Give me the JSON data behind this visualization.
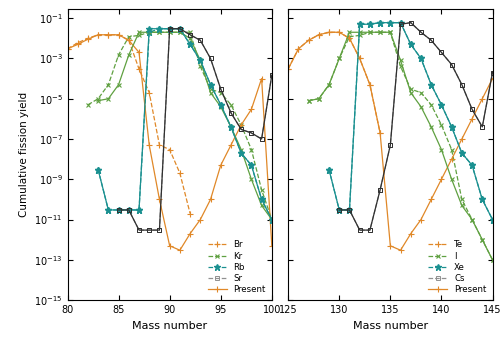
{
  "ylabel": "Cumulative fission yield",
  "xlabel": "Mass number",
  "ylim": [
    1e-15,
    0.3
  ],
  "colors": {
    "orange": "#E08828",
    "green": "#5FA040",
    "teal": "#1A9090",
    "gray": "#909090",
    "black": "#303030"
  },
  "Br_J_m": [
    80,
    81,
    82,
    83,
    84,
    85,
    86,
    87,
    88,
    89,
    90,
    91,
    92
  ],
  "Br_J_y": [
    0.003,
    0.006,
    0.01,
    0.015,
    0.015,
    0.015,
    0.008,
    0.0003,
    2e-05,
    5e-08,
    3e-08,
    2e-09,
    2e-11
  ],
  "Kr_J_m": [
    82,
    83,
    84,
    85,
    86,
    87,
    88,
    89,
    90,
    91,
    92,
    93,
    94,
    95,
    96,
    97,
    98,
    99,
    100
  ],
  "Kr_J_y": [
    5e-06,
    1e-05,
    5e-05,
    0.0015,
    0.012,
    0.014,
    0.02,
    0.02,
    0.02,
    0.02,
    0.02,
    0.0004,
    3e-05,
    2e-05,
    5e-06,
    5e-07,
    3e-08,
    3e-10,
    1e-11
  ],
  "Rb_J_m": [
    83,
    84,
    85,
    86,
    87,
    88,
    89,
    90,
    91,
    92,
    93,
    94,
    95,
    96,
    97,
    98,
    99,
    100
  ],
  "Rb_J_y": [
    3e-09,
    3e-11,
    3e-11,
    3e-11,
    3e-11,
    0.02,
    0.03,
    0.03,
    0.03,
    0.005,
    0.0008,
    5e-05,
    5e-06,
    4e-07,
    2e-08,
    5e-09,
    1e-10,
    1e-11
  ],
  "Sr_J_m": [
    85,
    86,
    87,
    88,
    89,
    90,
    91,
    92,
    93,
    94,
    95,
    96,
    97,
    98,
    99,
    100
  ],
  "Sr_J_y": [
    3e-11,
    3e-11,
    3e-12,
    3e-12,
    3e-12,
    0.03,
    0.03,
    0.015,
    0.008,
    0.001,
    3e-05,
    2e-06,
    3e-07,
    2e-07,
    1e-07,
    0.00015
  ],
  "Br_P_m": [
    80,
    81,
    82,
    83,
    84,
    85,
    86,
    87,
    88,
    89,
    90,
    91,
    92,
    93,
    94,
    95,
    96,
    97,
    98,
    99,
    100
  ],
  "Br_P_y": [
    0.003,
    0.005,
    0.009,
    0.015,
    0.015,
    0.015,
    0.008,
    0.002,
    5e-08,
    1e-10,
    5e-13,
    3e-13,
    2e-12,
    1e-11,
    1e-10,
    5e-09,
    5e-08,
    5e-07,
    3e-06,
    0.0001,
    5e-13
  ],
  "Kr_P_m": [
    83,
    84,
    85,
    86,
    87,
    88,
    89,
    90,
    91,
    92,
    93,
    94,
    95,
    96,
    97,
    98,
    99,
    100
  ],
  "Kr_P_y": [
    8e-06,
    1e-05,
    5e-05,
    0.0015,
    0.02,
    0.02,
    0.02,
    0.02,
    0.02,
    0.01,
    0.0008,
    2e-05,
    4e-06,
    4e-07,
    3e-08,
    1e-09,
    5e-11,
    1e-11
  ],
  "Rb_P_m": [
    83,
    84,
    85,
    86,
    87,
    88,
    89,
    90,
    91,
    92,
    93,
    94,
    95,
    96,
    97,
    98,
    99,
    100
  ],
  "Rb_P_y": [
    3e-09,
    3e-11,
    3e-11,
    3e-11,
    3e-11,
    0.03,
    0.03,
    0.03,
    0.03,
    0.005,
    0.0008,
    5e-05,
    5e-06,
    4e-07,
    2e-08,
    5e-09,
    1e-10,
    1e-11
  ],
  "Sr_P_m": [
    85,
    86,
    87,
    88,
    89,
    90,
    91,
    92,
    93,
    94,
    95,
    96,
    97,
    98,
    99,
    100
  ],
  "Sr_P_y": [
    3e-11,
    3e-11,
    3e-12,
    3e-12,
    3e-12,
    0.03,
    0.03,
    0.015,
    0.008,
    0.001,
    3e-05,
    2e-06,
    3e-07,
    2e-07,
    1e-07,
    0.00015
  ],
  "Te_J_m": [
    125,
    126,
    127,
    128,
    129,
    130,
    131,
    132,
    133,
    134
  ],
  "Te_J_y": [
    0.0003,
    0.003,
    0.008,
    0.015,
    0.02,
    0.02,
    0.01,
    0.001,
    5e-05,
    2e-07
  ],
  "I_J_m": [
    127,
    128,
    129,
    130,
    131,
    132,
    133,
    134,
    135,
    136,
    137,
    138,
    139,
    140,
    141,
    142,
    143,
    144,
    145
  ],
  "I_J_y": [
    8e-06,
    1e-05,
    5e-05,
    0.001,
    0.012,
    0.014,
    0.02,
    0.02,
    0.02,
    0.0004,
    3e-05,
    2e-05,
    5e-06,
    5e-07,
    3e-08,
    1e-10,
    1e-11,
    1e-12,
    1e-13
  ],
  "Xe_J_m": [
    129,
    130,
    131,
    132,
    133,
    134,
    135,
    136,
    137,
    138,
    139,
    140,
    141,
    142,
    143,
    144,
    145
  ],
  "Xe_J_y": [
    3e-09,
    3e-11,
    3e-11,
    0.05,
    0.05,
    0.06,
    0.06,
    0.06,
    0.005,
    0.001,
    5e-05,
    5e-06,
    4e-07,
    2e-08,
    5e-09,
    1e-10,
    1e-11
  ],
  "Cs_J_m": [
    130,
    131,
    132,
    133,
    134,
    135,
    136,
    137,
    138,
    139,
    140,
    141,
    142,
    143,
    144,
    145
  ],
  "Cs_J_y": [
    3e-11,
    3e-11,
    3e-12,
    3e-12,
    3e-10,
    5e-08,
    0.05,
    0.06,
    0.02,
    0.008,
    0.002,
    0.0005,
    5e-05,
    3e-06,
    4e-07,
    0.0002
  ],
  "Te_P_m": [
    125,
    126,
    127,
    128,
    129,
    130,
    131,
    132,
    133,
    134,
    135,
    136,
    137,
    138,
    139,
    140,
    141,
    142,
    143,
    144,
    145
  ],
  "Te_P_y": [
    0.0003,
    0.003,
    0.008,
    0.015,
    0.02,
    0.02,
    0.01,
    0.001,
    5e-05,
    2e-07,
    5e-13,
    3e-13,
    2e-12,
    1e-11,
    1e-10,
    1e-09,
    1e-08,
    1e-07,
    1e-06,
    1e-05,
    0.0001
  ],
  "I_P_m": [
    127,
    128,
    129,
    130,
    131,
    132,
    133,
    134,
    135,
    136,
    137,
    138,
    139,
    140,
    141,
    142,
    143,
    144,
    145
  ],
  "I_P_y": [
    8e-06,
    1e-05,
    5e-05,
    0.001,
    0.02,
    0.02,
    0.02,
    0.02,
    0.02,
    0.0008,
    2e-05,
    4e-06,
    4e-07,
    3e-08,
    1e-09,
    5e-11,
    1e-11,
    1e-12,
    1e-13
  ],
  "Xe_P_m": [
    129,
    130,
    131,
    132,
    133,
    134,
    135,
    136,
    137,
    138,
    139,
    140,
    141,
    142,
    143,
    144,
    145
  ],
  "Xe_P_y": [
    3e-09,
    3e-11,
    3e-11,
    0.05,
    0.05,
    0.06,
    0.06,
    0.06,
    0.005,
    0.001,
    5e-05,
    5e-06,
    4e-07,
    2e-08,
    5e-09,
    1e-10,
    1e-11
  ],
  "Cs_P_m": [
    130,
    131,
    132,
    133,
    134,
    135,
    136,
    137,
    138,
    139,
    140,
    141,
    142,
    143,
    144,
    145
  ],
  "Cs_P_y": [
    3e-11,
    3e-11,
    3e-12,
    3e-12,
    3e-10,
    5e-08,
    0.05,
    0.06,
    0.02,
    0.008,
    0.002,
    0.0005,
    5e-05,
    3e-06,
    4e-07,
    0.0002
  ]
}
